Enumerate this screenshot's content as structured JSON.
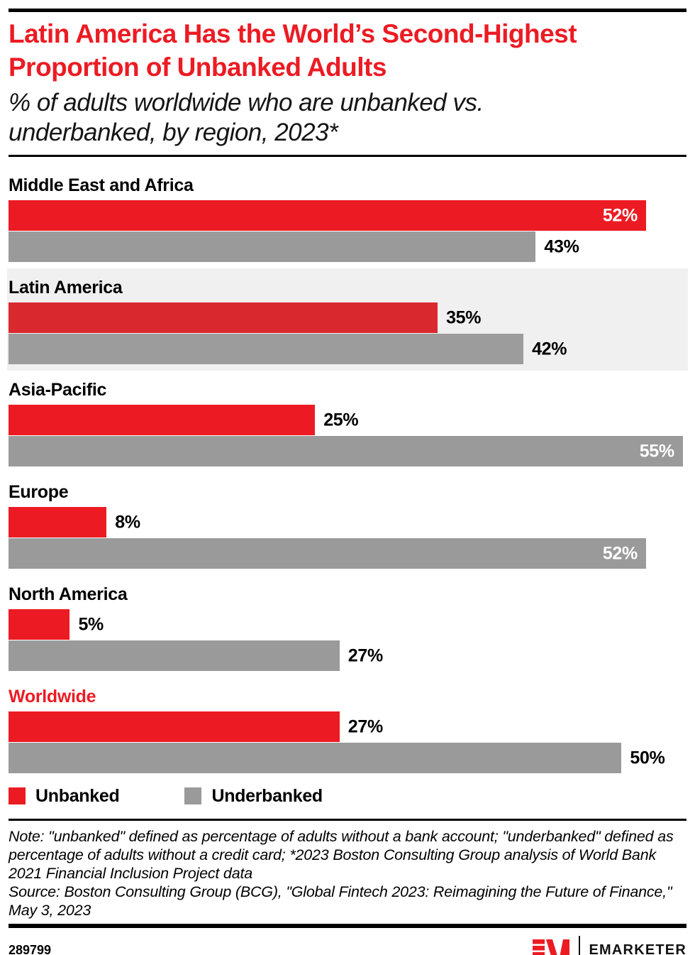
{
  "colors": {
    "accent_red": "#EC1B23",
    "bar_gray": "#9A9A9A",
    "highlight_row_bg": "#F0F0F0",
    "value_label_inside": "#FFFFFF",
    "text_black": "#000000"
  },
  "chart_data": {
    "type": "bar",
    "orientation": "horizontal",
    "title": "Latin America Has the World’s Second-Highest Proportion of Unbanked Adults",
    "subtitle": "% of adults worldwide who are unbanked vs. underbanked, by region, 2023*",
    "unit": "%",
    "categories": [
      "Middle East and Africa",
      "Latin America",
      "Asia-Pacific",
      "Europe",
      "North America",
      "Worldwide"
    ],
    "series": [
      {
        "name": "Unbanked",
        "color": "#EC1B23",
        "values": [
          52,
          35,
          25,
          8,
          5,
          27
        ]
      },
      {
        "name": "Underbanked",
        "color": "#9A9A9A",
        "values": [
          43,
          42,
          55,
          52,
          27,
          50
        ]
      }
    ],
    "xlim": [
      0,
      55.3
    ],
    "grid": false,
    "legend_position": "bottom-left",
    "highlighted_category": "Latin America",
    "highlight_colors": {
      "Unbanked": "#D9292F",
      "Underbanked": "#9C9C9C"
    },
    "emphasized_category": "Worldwide",
    "emphasized_label_color": "#EC1B23"
  },
  "notes": {
    "note": "Note: \"unbanked\" defined as percentage of adults without a bank account; \"underbanked\" defined as percentage of adults without a credit card; *2023 Boston Consulting Group analysis of World Bank 2021 Financial Inclusion Project data",
    "source": "Source: Boston Consulting Group (BCG), \"Global Fintech 2023: Reimagining the Future of Finance,\" May 3, 2023"
  },
  "footer": {
    "chart_id": "289799",
    "brand_wordmark": "EMARKETER",
    "logo_icon": "em-logo",
    "logo_color": "#EC1B23"
  }
}
